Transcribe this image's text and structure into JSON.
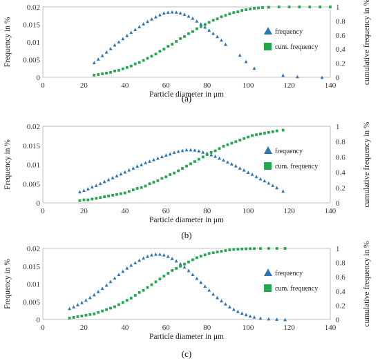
{
  "chart_data": [
    {
      "type": "scatter",
      "panel_label": "(a)",
      "xlabel": "Particle diameter in μm",
      "ylabel": "Frequency in %",
      "y2label": "cumulative frequency in %",
      "xlim": [
        0,
        140
      ],
      "xticks": [
        0,
        20,
        40,
        60,
        80,
        100,
        120,
        140
      ],
      "ylim": [
        0,
        0.02
      ],
      "yticks": [
        "0",
        "0.005",
        "0.01",
        "0.015",
        "0.02"
      ],
      "y2lim": [
        0,
        1
      ],
      "y2ticks": [
        "0",
        "0.2",
        "0.4",
        "0.6",
        "0.8",
        "1"
      ],
      "legend_position": "right",
      "series": [
        {
          "name": "frequency",
          "axis": "left",
          "marker": "triangle",
          "color": "#2e75b6",
          "x": [
            25,
            27,
            29,
            31,
            33,
            35,
            37,
            39,
            41,
            43,
            45,
            47,
            49,
            51,
            53,
            55,
            57,
            59,
            61,
            63,
            65,
            67,
            69,
            71,
            73,
            75,
            77,
            79,
            81,
            83,
            85,
            87,
            89,
            96,
            99,
            103,
            117,
            124,
            136
          ],
          "y": [
            0.0042,
            0.0052,
            0.0062,
            0.0072,
            0.0082,
            0.0092,
            0.0101,
            0.011,
            0.0119,
            0.0128,
            0.0136,
            0.0144,
            0.0152,
            0.0159,
            0.0166,
            0.0172,
            0.0178,
            0.0183,
            0.0185,
            0.0186,
            0.0185,
            0.0183,
            0.0179,
            0.0174,
            0.0168,
            0.016,
            0.0152,
            0.0143,
            0.0134,
            0.0125,
            0.0116,
            0.0106,
            0.0094,
            0.0063,
            0.0045,
            0.0026,
            0.0006,
            0.0002,
            0
          ]
        },
        {
          "name": "cum. frequency",
          "axis": "right",
          "marker": "square",
          "color": "#22a84a",
          "x": [
            25,
            27,
            29,
            31,
            33,
            35,
            37,
            39,
            41,
            43,
            45,
            47,
            49,
            51,
            53,
            55,
            57,
            59,
            61,
            63,
            65,
            67,
            69,
            71,
            73,
            75,
            77,
            79,
            81,
            83,
            85,
            87,
            89,
            91,
            93,
            95,
            97,
            99,
            101,
            103,
            105,
            107,
            110,
            115,
            120,
            125,
            130,
            135,
            140
          ],
          "y": [
            0.03,
            0.04,
            0.05,
            0.06,
            0.07,
            0.09,
            0.1,
            0.12,
            0.14,
            0.16,
            0.19,
            0.21,
            0.24,
            0.27,
            0.3,
            0.33,
            0.37,
            0.4,
            0.44,
            0.47,
            0.51,
            0.55,
            0.58,
            0.62,
            0.65,
            0.69,
            0.72,
            0.75,
            0.78,
            0.81,
            0.83,
            0.86,
            0.88,
            0.9,
            0.92,
            0.93,
            0.95,
            0.96,
            0.97,
            0.98,
            0.985,
            0.99,
            0.995,
            1,
            1,
            1,
            1,
            1,
            1
          ]
        }
      ]
    },
    {
      "type": "scatter",
      "panel_label": "(b)",
      "xlabel": "Particle diameter in μm",
      "ylabel": "Frequency in %",
      "y2label": "cumulative frequency in %",
      "xlim": [
        0,
        140
      ],
      "xticks": [
        0,
        20,
        40,
        60,
        80,
        100,
        120,
        140
      ],
      "ylim": [
        0,
        0.02
      ],
      "yticks": [
        "0",
        "0.005",
        "0.01",
        "0.015",
        "0.02"
      ],
      "y2lim": [
        0,
        1
      ],
      "y2ticks": [
        "0",
        "0.2",
        "0.4",
        "0.6",
        "0.8",
        "1"
      ],
      "legend_position": "right",
      "series": [
        {
          "name": "frequency",
          "axis": "left",
          "marker": "triangle",
          "color": "#2e75b6",
          "x": [
            18,
            20,
            22,
            24,
            26,
            28,
            30,
            32,
            34,
            36,
            38,
            40,
            42,
            44,
            46,
            48,
            50,
            52,
            54,
            56,
            58,
            60,
            62,
            64,
            66,
            68,
            70,
            72,
            74,
            76,
            78,
            80,
            82,
            84,
            86,
            88,
            90,
            92,
            94,
            96,
            98,
            100,
            102,
            104,
            106,
            108,
            110,
            112,
            114,
            117
          ],
          "y": [
            0.0029,
            0.0033,
            0.0037,
            0.0042,
            0.0046,
            0.0051,
            0.0056,
            0.0061,
            0.0066,
            0.0071,
            0.0076,
            0.0081,
            0.0086,
            0.0091,
            0.0096,
            0.01,
            0.0105,
            0.0109,
            0.0113,
            0.0117,
            0.0121,
            0.0125,
            0.0128,
            0.0132,
            0.0135,
            0.0137,
            0.0139,
            0.0139,
            0.0138,
            0.0136,
            0.0133,
            0.013,
            0.0126,
            0.0122,
            0.0117,
            0.0112,
            0.0107,
            0.0102,
            0.0097,
            0.0091,
            0.0086,
            0.008,
            0.0075,
            0.0069,
            0.0063,
            0.0058,
            0.0052,
            0.0046,
            0.004,
            0.0031
          ]
        },
        {
          "name": "cum. frequency",
          "axis": "right",
          "marker": "square",
          "color": "#22a84a",
          "x": [
            18,
            20,
            22,
            24,
            26,
            28,
            30,
            32,
            34,
            36,
            38,
            40,
            42,
            44,
            46,
            48,
            50,
            52,
            54,
            56,
            58,
            60,
            62,
            64,
            66,
            68,
            70,
            72,
            74,
            76,
            78,
            80,
            82,
            84,
            86,
            88,
            90,
            92,
            94,
            96,
            98,
            100,
            102,
            104,
            106,
            108,
            110,
            112,
            114,
            117
          ],
          "y": [
            0.03,
            0.04,
            0.04,
            0.05,
            0.06,
            0.07,
            0.08,
            0.09,
            0.1,
            0.11,
            0.12,
            0.13,
            0.15,
            0.17,
            0.19,
            0.2,
            0.22,
            0.25,
            0.27,
            0.29,
            0.32,
            0.34,
            0.37,
            0.39,
            0.42,
            0.45,
            0.48,
            0.51,
            0.54,
            0.57,
            0.6,
            0.63,
            0.66,
            0.68,
            0.71,
            0.74,
            0.76,
            0.78,
            0.8,
            0.82,
            0.84,
            0.86,
            0.88,
            0.89,
            0.9,
            0.91,
            0.92,
            0.93,
            0.94,
            0.95
          ]
        }
      ]
    },
    {
      "type": "scatter",
      "panel_label": "(c)",
      "xlabel": "Particle diameter in μm",
      "ylabel": "Frequency in %",
      "y2label": "cumulative frequency in %",
      "xlim": [
        0,
        140
      ],
      "xticks": [
        0,
        20,
        40,
        60,
        80,
        100,
        120,
        140
      ],
      "ylim": [
        0,
        0.02
      ],
      "yticks": [
        "0",
        "0.005",
        "0.01",
        "0.015",
        "0.02"
      ],
      "y2lim": [
        0,
        1
      ],
      "y2ticks": [
        "0",
        "0.2",
        "0.4",
        "0.6",
        "0.8",
        "1"
      ],
      "legend_position": "right",
      "series": [
        {
          "name": "frequency",
          "axis": "left",
          "marker": "triangle",
          "color": "#2e75b6",
          "x": [
            13,
            15,
            17,
            19,
            21,
            23,
            25,
            27,
            29,
            31,
            33,
            35,
            37,
            39,
            41,
            43,
            45,
            47,
            49,
            51,
            53,
            55,
            57,
            59,
            61,
            63,
            65,
            67,
            69,
            71,
            73,
            75,
            77,
            79,
            81,
            83,
            85,
            87,
            89,
            91,
            93,
            95,
            97,
            99,
            101,
            103,
            106,
            110,
            114,
            118
          ],
          "y": [
            0.0031,
            0.0036,
            0.0042,
            0.0048,
            0.0055,
            0.0062,
            0.007,
            0.0079,
            0.0088,
            0.0097,
            0.0107,
            0.0117,
            0.0127,
            0.0136,
            0.0145,
            0.0153,
            0.016,
            0.0167,
            0.0173,
            0.0178,
            0.0182,
            0.0184,
            0.0184,
            0.0182,
            0.0178,
            0.0172,
            0.0165,
            0.0157,
            0.0148,
            0.0138,
            0.0127,
            0.0116,
            0.0105,
            0.0094,
            0.0083,
            0.0072,
            0.0062,
            0.0053,
            0.0044,
            0.0036,
            0.0029,
            0.0023,
            0.0018,
            0.0014,
            0.001,
            0.0007,
            0.0004,
            0.0002,
            0.0001,
            0
          ]
        },
        {
          "name": "cum. frequency",
          "axis": "right",
          "marker": "square",
          "color": "#22a84a",
          "x": [
            13,
            15,
            17,
            19,
            21,
            23,
            25,
            27,
            29,
            31,
            33,
            35,
            37,
            39,
            41,
            43,
            45,
            47,
            49,
            51,
            53,
            55,
            57,
            59,
            61,
            63,
            65,
            67,
            69,
            71,
            73,
            75,
            77,
            79,
            81,
            83,
            85,
            87,
            89,
            91,
            93,
            95,
            97,
            99,
            101,
            103,
            106,
            110,
            114,
            118
          ],
          "y": [
            0.02,
            0.03,
            0.04,
            0.05,
            0.06,
            0.07,
            0.08,
            0.1,
            0.12,
            0.14,
            0.16,
            0.18,
            0.21,
            0.24,
            0.27,
            0.3,
            0.34,
            0.38,
            0.41,
            0.45,
            0.49,
            0.53,
            0.57,
            0.61,
            0.65,
            0.69,
            0.72,
            0.75,
            0.78,
            0.81,
            0.84,
            0.87,
            0.89,
            0.91,
            0.93,
            0.94,
            0.95,
            0.96,
            0.97,
            0.98,
            0.985,
            0.99,
            0.993,
            0.995,
            0.997,
            0.998,
            0.999,
            1,
            1,
            1
          ]
        }
      ]
    }
  ]
}
